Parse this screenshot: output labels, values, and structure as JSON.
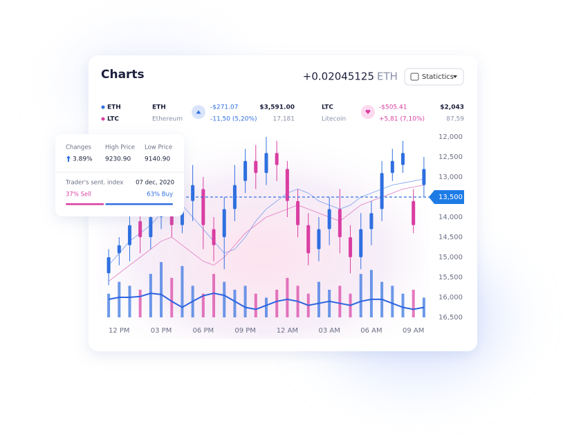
{
  "header": {
    "title": "Charts",
    "amount": "+0.02045125",
    "unit": "ETH",
    "button": "Statictics"
  },
  "tickers": {
    "legend": [
      "ETH",
      "LTC"
    ],
    "eth": {
      "symbol": "ETH",
      "name": "Ethereum",
      "change": "-$271.07",
      "change_pct": "-11,50 (5,20%)",
      "price": "$3,591.00",
      "volume": "17,181"
    },
    "ltc": {
      "symbol": "LTC",
      "name": "Litecoin",
      "change": "-$505.41",
      "change_pct": "+5,81 (7,10%)",
      "price": "$2,043",
      "volume": "87,59"
    }
  },
  "popup": {
    "headers": [
      "Changes",
      "High Price",
      "Low Price"
    ],
    "values": [
      "3.89%",
      "9230.90",
      "9140.90"
    ],
    "index_label": "Trader's sent. index",
    "date": "07 dec, 2020",
    "sell": {
      "value": 37,
      "label": "37% Sell"
    },
    "buy": {
      "value": 63,
      "label": "63% Buy"
    }
  },
  "chart_data": {
    "type": "candlestick",
    "y_inverted": true,
    "x": [
      -0.75,
      0,
      0.75,
      1.5,
      2.25,
      3,
      3.75,
      4.5,
      5.25,
      6,
      6.75,
      7.5,
      8.25,
      9,
      9.75,
      10.5,
      11.25,
      12,
      12.75,
      13.5,
      14.25,
      15,
      15.75,
      16.5,
      17.25,
      18,
      18.75,
      19.5,
      20.25,
      21,
      21.75
    ],
    "open": [
      15400,
      14900,
      14700,
      14100,
      14500,
      14000,
      13800,
      14200,
      13600,
      13300,
      14300,
      14500,
      13800,
      13100,
      12600,
      12900,
      12400,
      12800,
      13600,
      14200,
      14800,
      14300,
      13800,
      14500,
      15000,
      14300,
      13800,
      12900,
      12700,
      13600,
      13200
    ],
    "close": [
      15000,
      14700,
      14200,
      14500,
      14000,
      13700,
      14200,
      13600,
      13200,
      14200,
      14700,
      13800,
      13200,
      12600,
      12900,
      12400,
      12700,
      13600,
      14200,
      14900,
      14300,
      13800,
      14500,
      15000,
      14300,
      13900,
      12900,
      12600,
      12400,
      14200,
      12800
    ],
    "low": [
      14800,
      14500,
      13900,
      13800,
      13700,
      13400,
      13500,
      12900,
      12700,
      13000,
      14000,
      13500,
      12700,
      12300,
      12200,
      12000,
      12100,
      12600,
      13300,
      13900,
      14000,
      13500,
      13300,
      14200,
      13900,
      13600,
      12600,
      12300,
      12100,
      13300,
      12500
    ],
    "high": [
      15700,
      15200,
      15100,
      14900,
      14800,
      14300,
      14500,
      14400,
      14100,
      14800,
      15100,
      15300,
      14100,
      13400,
      13300,
      13200,
      13100,
      14000,
      14500,
      15200,
      15100,
      14700,
      14900,
      15400,
      15300,
      14700,
      14100,
      13100,
      12900,
      14400,
      13500
    ],
    "volume": [
      30,
      45,
      40,
      35,
      55,
      70,
      50,
      65,
      40,
      30,
      55,
      45,
      35,
      40,
      30,
      25,
      35,
      50,
      40,
      30,
      45,
      35,
      40,
      30,
      55,
      60,
      45,
      40,
      30,
      35,
      25
    ],
    "ma": [
      16050,
      16000,
      16000,
      15980,
      15900,
      15930,
      16100,
      16250,
      16100,
      15960,
      15900,
      15950,
      16100,
      16250,
      16300,
      16200,
      16100,
      16050,
      16100,
      16200,
      16150,
      16100,
      16150,
      16200,
      16100,
      16050,
      16050,
      16150,
      16250,
      16300,
      16250
    ],
    "trend_a": [
      15200,
      14900,
      14600,
      14400,
      14200,
      13900,
      13600,
      13700,
      14000,
      14300,
      14600,
      14900,
      14800,
      14500,
      14100,
      13800,
      13600,
      13400,
      13300,
      13400,
      13600,
      13700,
      13800,
      13700,
      13500,
      13400,
      13300,
      13200,
      13150,
      13100,
      13050
    ],
    "trend_b": [
      15600,
      15400,
      15200,
      15000,
      14800,
      14600,
      14500,
      14700,
      14900,
      15100,
      15200,
      15000,
      14700,
      14400,
      14200,
      14000,
      13900,
      13800,
      13700,
      13800,
      13900,
      14000,
      14100,
      13900,
      13700,
      13600,
      13500,
      13400,
      13300,
      13250,
      13200
    ],
    "current": {
      "value": 13500,
      "label": "13,500"
    },
    "ylim": [
      12000,
      16500
    ],
    "yticks": [
      {
        "value": 12000,
        "label": "12,000"
      },
      {
        "value": 12500,
        "label": "12,500"
      },
      {
        "value": 13000,
        "label": "13,000"
      },
      {
        "value": 13500,
        "label": "13,500"
      },
      {
        "value": 14000,
        "label": "14,000"
      },
      {
        "value": 14500,
        "label": "14,500"
      },
      {
        "value": 15000,
        "label": "15,000"
      },
      {
        "value": 15500,
        "label": "15,500"
      },
      {
        "value": 16000,
        "label": "16,000"
      },
      {
        "value": 16500,
        "label": "16,500"
      }
    ],
    "xlim": [
      -1.1,
      22.1
    ],
    "xticks": [
      {
        "value": 0,
        "label": "12 PM"
      },
      {
        "value": 3,
        "label": "03 PM"
      },
      {
        "value": 6,
        "label": "06 PM"
      },
      {
        "value": 9,
        "label": "09 PM"
      },
      {
        "value": 12,
        "label": "12 AM"
      },
      {
        "value": 15,
        "label": "03 AM"
      },
      {
        "value": 18,
        "label": "06 AM"
      },
      {
        "value": 21,
        "label": "09 AM"
      }
    ],
    "colors": {
      "up": "#2f6fe0",
      "down": "#d93ea2",
      "ma": "#2b63e0",
      "trend_a": "#7aa0ee",
      "trend_b": "#e07ac0"
    }
  }
}
